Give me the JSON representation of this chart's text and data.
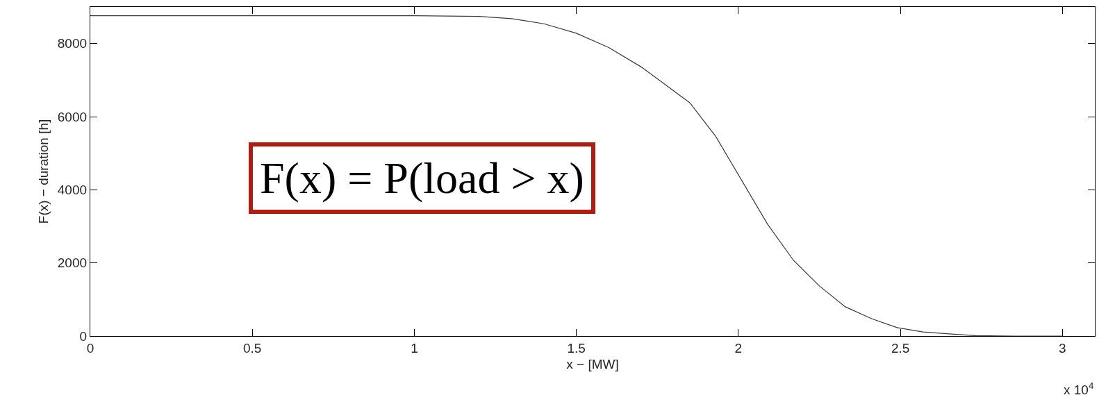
{
  "chart_data": {
    "type": "line",
    "xlabel": "x − [MW]",
    "ylabel": "F(x) − duration [h]",
    "annotations": [
      "F(x) = P(load > x)",
      "x 10$^{4}$"
    ],
    "x": [
      0,
      0.5,
      1,
      1.2,
      1.3,
      1.4,
      1.5,
      1.6,
      1.7,
      1.85,
      1.93,
      2.01,
      2.09,
      2.17,
      2.25,
      2.33,
      2.41,
      2.49,
      2.57,
      2.65,
      2.73,
      2.85,
      3
    ],
    "series": [
      {
        "color": "#3a3a3a",
        "values": [
          8760,
          8760,
          8760,
          8740,
          8680,
          8540,
          8280,
          7890,
          7360,
          6380,
          5460,
          4260,
          3060,
          2070,
          1370,
          800,
          480,
          230,
          110,
          60,
          10,
          0,
          0
        ]
      }
    ],
    "xlim": [
      0,
      3.1
    ],
    "ylim": [
      0,
      9000
    ],
    "xticks": [
      0,
      0.5,
      1,
      1.5,
      2,
      2.5,
      3
    ],
    "yticks": [
      0,
      2000,
      4000,
      6000,
      8000
    ],
    "marker": "none",
    "line_style": "solid"
  }
}
